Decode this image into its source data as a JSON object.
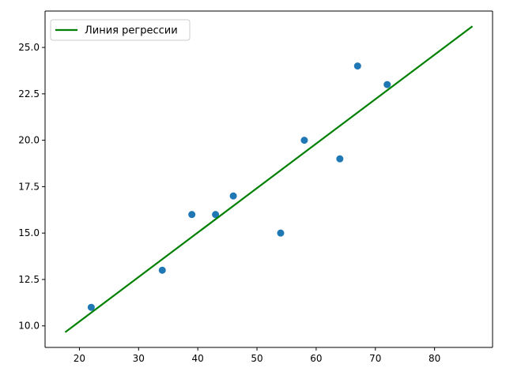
{
  "chart_data": {
    "type": "scatter",
    "title": "",
    "xlabel": "",
    "ylabel": "",
    "xlim": [
      14.2,
      89.8
    ],
    "ylim": [
      8.84,
      26.96
    ],
    "grid": false,
    "legend_placement": "top-left",
    "x_ticks": [
      20,
      30,
      40,
      50,
      60,
      70,
      80
    ],
    "x_tick_labels": [
      "20",
      "30",
      "40",
      "50",
      "60",
      "70",
      "80"
    ],
    "y_ticks": [
      10.0,
      12.5,
      15.0,
      17.5,
      20.0,
      22.5,
      25.0
    ],
    "y_tick_labels": [
      "10.0",
      "12.5",
      "15.0",
      "17.5",
      "20.0",
      "22.5",
      "25.0"
    ],
    "series": [
      {
        "kind": "scatter",
        "color": "#1f77b4",
        "points": [
          {
            "x": 22,
            "y": 11
          },
          {
            "x": 34,
            "y": 13
          },
          {
            "x": 39,
            "y": 16
          },
          {
            "x": 43,
            "y": 16
          },
          {
            "x": 46,
            "y": 17
          },
          {
            "x": 54,
            "y": 15
          },
          {
            "x": 58,
            "y": 20
          },
          {
            "x": 64,
            "y": 19
          },
          {
            "x": 67,
            "y": 24
          },
          {
            "x": 72,
            "y": 23
          }
        ]
      },
      {
        "kind": "line",
        "name": "Линия регрессии",
        "color": "#008000",
        "points": [
          {
            "x": 17.6,
            "y": 9.66
          },
          {
            "x": 86.4,
            "y": 26.14
          }
        ]
      }
    ]
  }
}
